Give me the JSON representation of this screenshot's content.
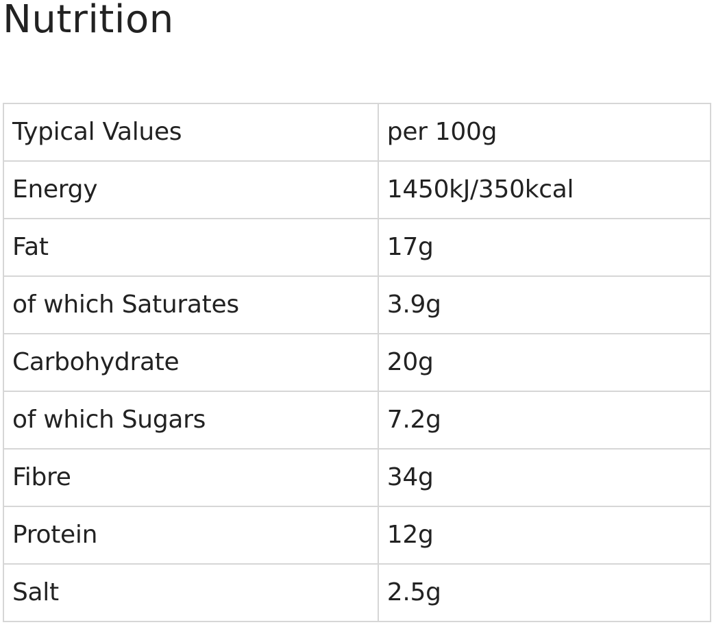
{
  "page": {
    "title": "Nutrition"
  },
  "nutrition_table": {
    "rows": [
      {
        "label": "Typical Values",
        "value": "per 100g"
      },
      {
        "label": "Energy",
        "value": "1450kJ/350kcal"
      },
      {
        "label": "Fat",
        "value": "17g"
      },
      {
        "label": "of which Saturates",
        "value": "3.9g"
      },
      {
        "label": "Carbohydrate",
        "value": "20g"
      },
      {
        "label": "of which Sugars",
        "value": "7.2g"
      },
      {
        "label": "Fibre",
        "value": "34g"
      },
      {
        "label": "Protein",
        "value": "12g"
      },
      {
        "label": "Salt",
        "value": "2.5g"
      }
    ]
  },
  "colors": {
    "text": "#222222",
    "border": "#d6d6d6",
    "background": "#ffffff"
  }
}
